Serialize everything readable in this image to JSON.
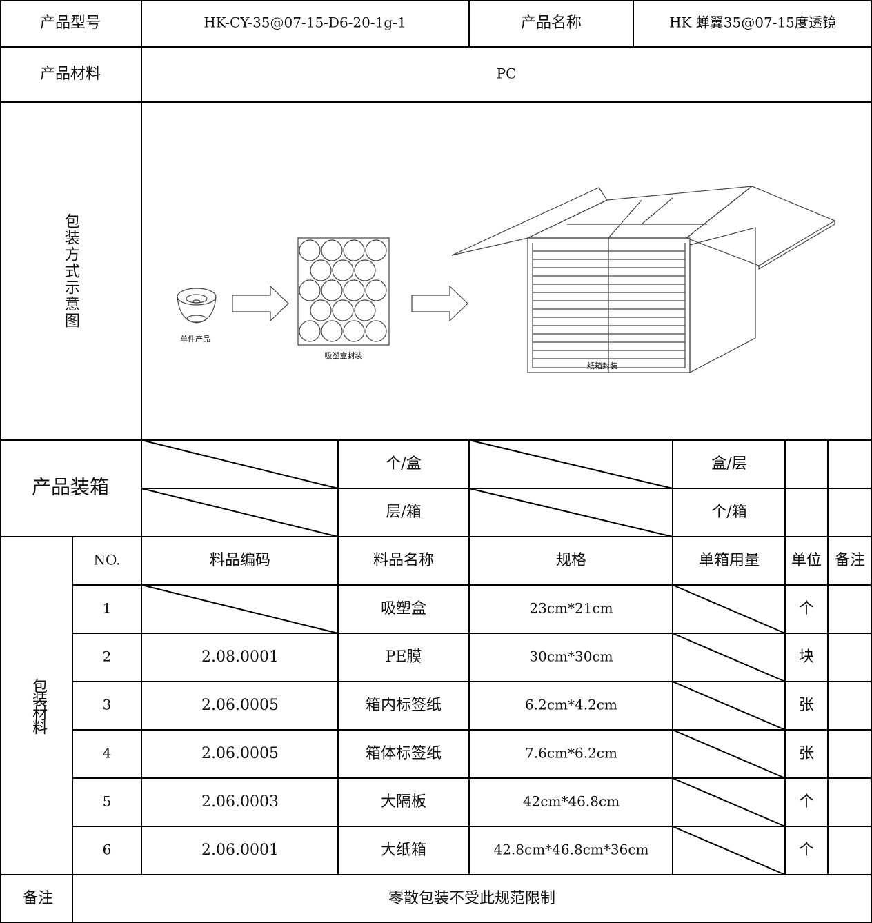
{
  "header": {
    "model_label": "产品型号",
    "model": "HK-CY-35@07-15-D6-20-1g-1",
    "name_label": "产品名称",
    "name": "HK 蝉翼35@07-15度透镜",
    "material_label": "产品材料",
    "material": "PC"
  },
  "diagram": {
    "label": "包装方式示意图",
    "steps": [
      "单件产品",
      "吸塑盒封装",
      "纸箱封装"
    ]
  },
  "packing": {
    "label": "产品装箱",
    "units": [
      "个/盒",
      "盒/层",
      "层/箱",
      "个/箱"
    ]
  },
  "materials": {
    "label": "包装材料",
    "columns": [
      "NO.",
      "料品编码",
      "料品名称",
      "规格",
      "单箱用量",
      "单位",
      "备注"
    ],
    "rows": [
      {
        "no": "1",
        "name": "吸塑盒",
        "spec": "23cm*21cm",
        "unit": "个"
      },
      {
        "no": "2",
        "code": "2.08.0001",
        "name": "PE膜",
        "spec": "30cm*30cm",
        "unit": "块"
      },
      {
        "no": "3",
        "code": "2.06.0005",
        "name": "箱内标签纸",
        "spec": "6.2cm*4.2cm",
        "unit": "张"
      },
      {
        "no": "4",
        "code": "2.06.0005",
        "name": "箱体标签纸",
        "spec": "7.6cm*6.2cm",
        "unit": "张"
      },
      {
        "no": "5",
        "code": "2.06.0003",
        "name": "大隔板",
        "spec": "42cm*46.8cm",
        "unit": "个"
      },
      {
        "no": "6",
        "code": "2.06.0001",
        "name": "大纸箱",
        "spec": "42.8cm*46.8cm*36cm",
        "unit": "个"
      }
    ]
  },
  "remark": {
    "label": "备注",
    "text": "零散包装不受此规范限制"
  }
}
